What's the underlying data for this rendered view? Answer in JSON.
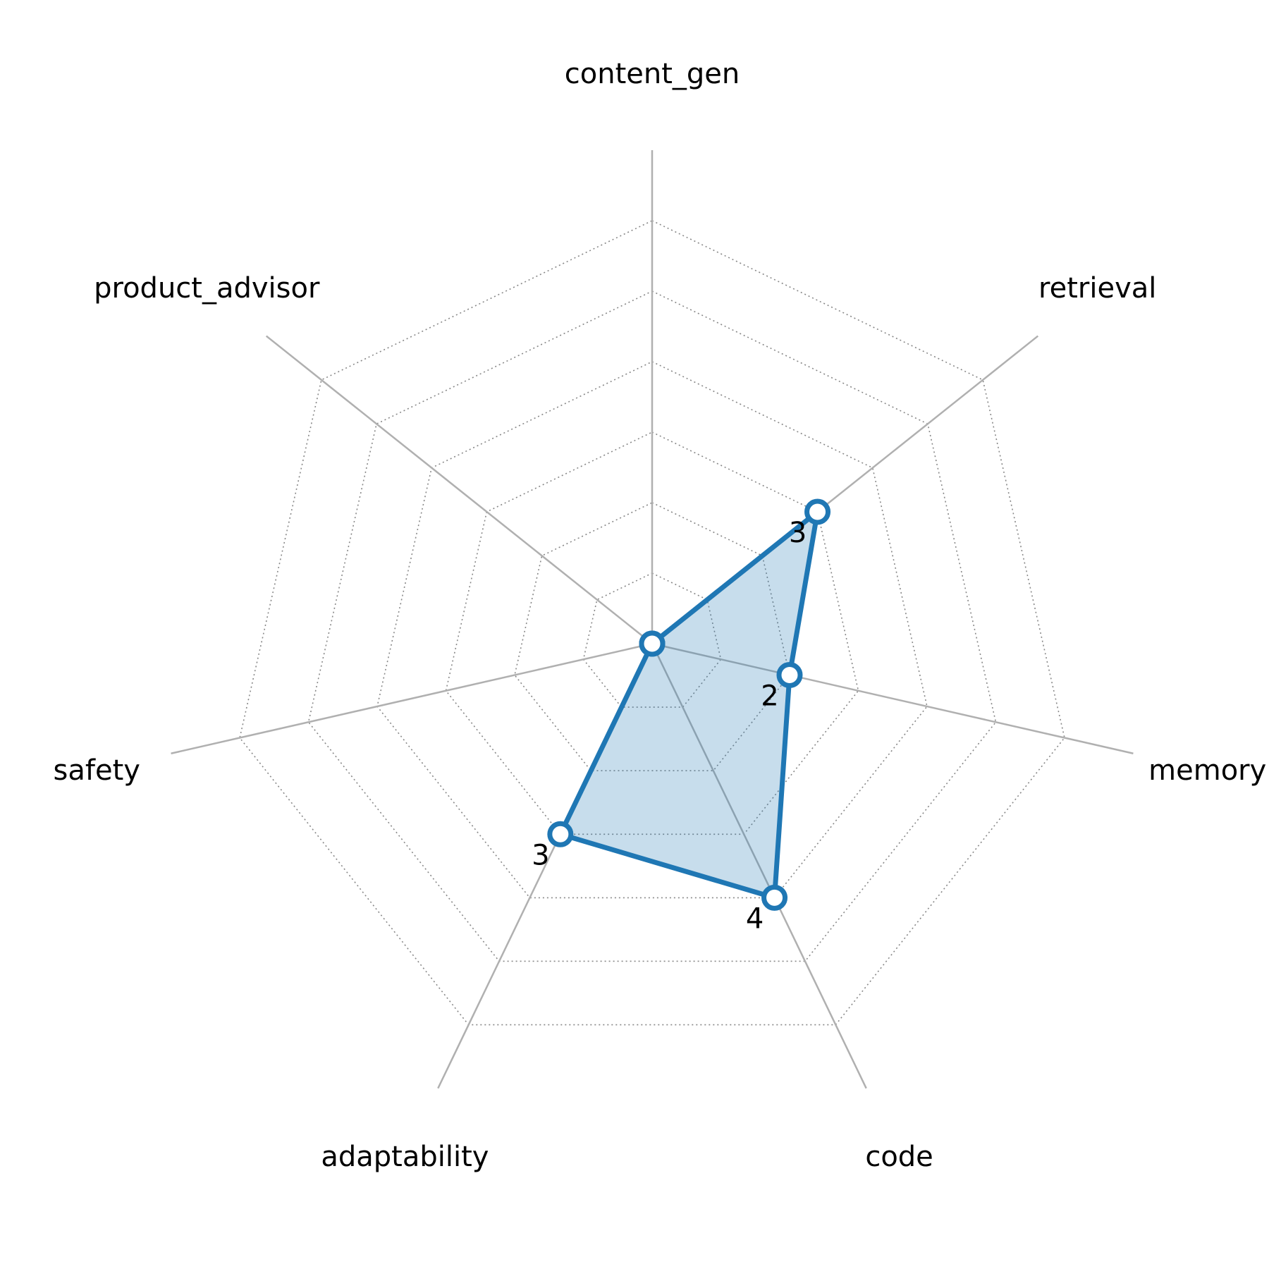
{
  "chart_data": {
    "type": "radar",
    "title": "",
    "axes": [
      "content_gen",
      "retrieval",
      "memory",
      "code",
      "adaptability",
      "safety",
      "product_advisor"
    ],
    "series": [
      {
        "values": [
          0,
          3,
          2,
          4,
          3,
          0,
          0
        ]
      }
    ],
    "data_labels": [
      "",
      "3",
      "2",
      "4",
      "3",
      "",
      ""
    ],
    "range": [
      0,
      7
    ],
    "grid_levels": [
      1,
      2,
      3,
      4,
      5,
      6
    ],
    "grid": true,
    "colors": {
      "line": "#1f77b4",
      "fill": "#1f77b4",
      "axis": "#b0b0b0",
      "grid": "#888888",
      "marker_face": "#ffffff"
    }
  }
}
